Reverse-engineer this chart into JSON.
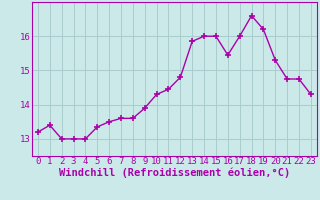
{
  "x": [
    0,
    1,
    2,
    3,
    4,
    5,
    6,
    7,
    8,
    9,
    10,
    11,
    12,
    13,
    14,
    15,
    16,
    17,
    18,
    19,
    20,
    21,
    22,
    23
  ],
  "y": [
    13.2,
    13.4,
    13.0,
    13.0,
    13.0,
    13.35,
    13.5,
    13.6,
    13.6,
    13.9,
    14.3,
    14.45,
    14.8,
    15.85,
    16.0,
    16.0,
    15.45,
    16.0,
    16.6,
    16.2,
    15.3,
    14.75,
    14.75,
    14.3
  ],
  "line_color": "#aa00aa",
  "marker": "+",
  "xlabel": "Windchill (Refroidissement éolien,°C)",
  "ylim": [
    12.5,
    17.0
  ],
  "xlim": [
    -0.5,
    23.5
  ],
  "yticks": [
    13,
    14,
    15,
    16
  ],
  "xticks": [
    0,
    1,
    2,
    3,
    4,
    5,
    6,
    7,
    8,
    9,
    10,
    11,
    12,
    13,
    14,
    15,
    16,
    17,
    18,
    19,
    20,
    21,
    22,
    23
  ],
  "background_color": "#cce9e9",
  "grid_color": "#aacccc",
  "tick_fontsize": 6.5,
  "xlabel_fontsize": 7.5
}
